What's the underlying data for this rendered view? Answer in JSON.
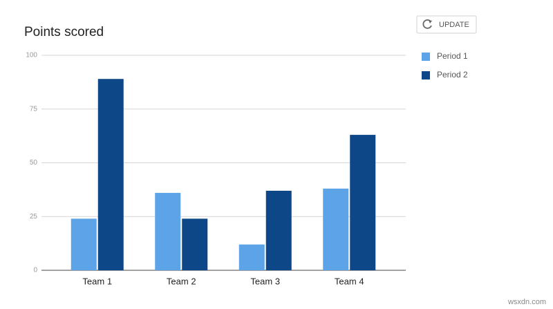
{
  "chart_data": {
    "type": "bar",
    "title": "Points scored",
    "categories": [
      "Team 1",
      "Team 2",
      "Team 3",
      "Team 4"
    ],
    "series": [
      {
        "name": "Period 1",
        "color": "#5ca3e8",
        "values": [
          24,
          36,
          12,
          38
        ]
      },
      {
        "name": "Period 2",
        "color": "#0d4787",
        "values": [
          89,
          24,
          37,
          63
        ]
      }
    ],
    "ylim": [
      0,
      100
    ],
    "yticks": [
      0,
      25,
      50,
      75,
      100
    ],
    "grid": true
  },
  "page": {
    "button": "UPDATE",
    "watermark": "wsxdn.com"
  }
}
